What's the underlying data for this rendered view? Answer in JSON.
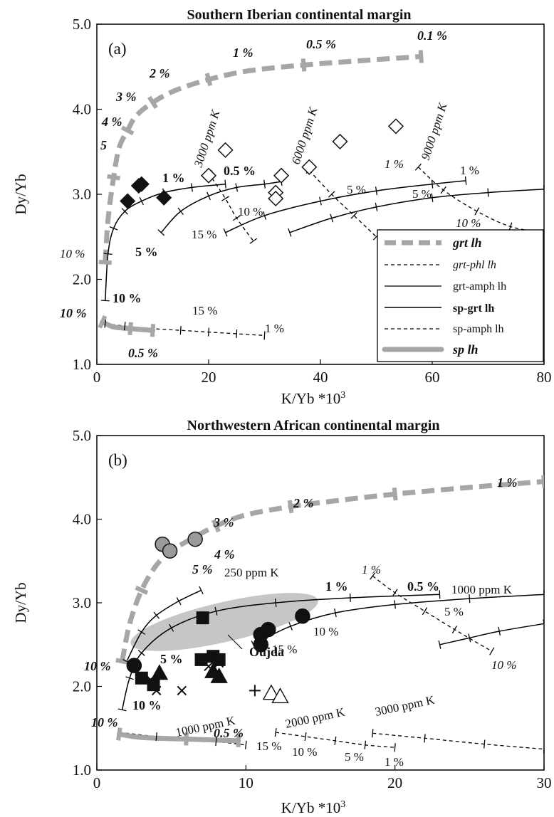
{
  "chart_data": [
    {
      "type": "line",
      "panel_label": "(a)",
      "title": "Southern Iberian continental margin",
      "xlabel": "K/Yb *10",
      "xlabel_sup": "3",
      "ylabel": "Dy/Yb",
      "xlim": [
        0,
        80
      ],
      "ylim": [
        1.0,
        5.0
      ],
      "xticks": [
        0,
        20,
        40,
        60,
        80
      ],
      "yticks": [
        "1.0",
        "2.0",
        "3.0",
        "4.0",
        "5.0"
      ],
      "legend": {
        "position": "bottom-right",
        "entries": [
          {
            "label": "grt lh",
            "style": "grey-thick-dashed",
            "font": "bold-italic"
          },
          {
            "label": "grt-phl lh",
            "style": "black-dashed",
            "font": "italic"
          },
          {
            "label": "grt-amph lh",
            "style": "black-solid",
            "font": "normal"
          },
          {
            "label": "sp-grt lh",
            "style": "black-solid",
            "font": "bold"
          },
          {
            "label": "sp-amph lh",
            "style": "black-dashed",
            "font": "normal"
          },
          {
            "label": "sp lh",
            "style": "grey-thick-solid",
            "font": "bold-italic"
          }
        ]
      },
      "series": [
        {
          "name": "grt lh",
          "style": "grey-thick-dashed",
          "x": [
            1.5,
            2,
            3,
            4,
            5.5,
            7,
            10,
            14,
            20,
            27,
            37,
            47,
            58
          ],
          "y": [
            2.2,
            2.7,
            3.2,
            3.55,
            3.75,
            3.92,
            4.08,
            4.22,
            4.35,
            4.45,
            4.52,
            4.57,
            4.62
          ]
        },
        {
          "name": "sp-grt lh",
          "style": "black-solid",
          "x": [
            1.5,
            2,
            3,
            5,
            8,
            12,
            17,
            23
          ],
          "y": [
            1.75,
            2.3,
            2.6,
            2.8,
            2.92,
            3.02,
            3.08,
            3.12
          ]
        },
        {
          "name": "grt-amph lh 3000 ppm K",
          "style": "black-solid",
          "x": [
            11.5,
            15,
            20,
            25,
            30,
            33
          ],
          "y": [
            2.55,
            2.8,
            2.98,
            3.08,
            3.12,
            3.15
          ]
        },
        {
          "name": "grt-amph lh 6000 ppm K",
          "style": "black-solid",
          "x": [
            23,
            30,
            40,
            50,
            60,
            66
          ],
          "y": [
            2.55,
            2.75,
            2.92,
            3.04,
            3.12,
            3.16
          ]
        },
        {
          "name": "grt-amph lh 9000 ppm K",
          "style": "black-solid",
          "x": [
            34.5,
            42,
            50,
            60,
            70,
            80
          ],
          "y": [
            2.55,
            2.72,
            2.85,
            2.96,
            3.02,
            3.06
          ]
        },
        {
          "name": "grt-phl lh a",
          "style": "black-dashed",
          "x": [
            20,
            23,
            25,
            28
          ],
          "y": [
            3.25,
            2.95,
            2.72,
            2.45
          ]
        },
        {
          "name": "grt-phl lh b",
          "style": "black-dashed",
          "x": [
            38,
            42,
            46,
            50
          ],
          "y": [
            3.28,
            3.0,
            2.75,
            2.5
          ]
        },
        {
          "name": "grt-phl lh c",
          "style": "black-dashed",
          "x": [
            57.5,
            62,
            68,
            74,
            80
          ],
          "y": [
            3.32,
            3.05,
            2.8,
            2.62,
            2.55
          ]
        },
        {
          "name": "sp-amph lh",
          "style": "black-dashed",
          "x": [
            1.5,
            5,
            10,
            15,
            20,
            25,
            30
          ],
          "y": [
            1.48,
            1.45,
            1.42,
            1.4,
            1.38,
            1.36,
            1.34
          ]
        },
        {
          "name": "sp lh",
          "style": "grey-thick-solid",
          "x": [
            1,
            3,
            6,
            10
          ],
          "y": [
            1.5,
            1.44,
            1.42,
            1.4
          ]
        }
      ],
      "points": [
        {
          "marker": "diamond-filled",
          "x": [
            5.5,
            7.5,
            8,
            12
          ],
          "y": [
            2.92,
            3.1,
            3.12,
            2.96
          ]
        },
        {
          "marker": "diamond-open",
          "x": [
            20,
            23,
            32,
            32,
            33,
            38,
            43.5,
            53.5
          ],
          "y": [
            3.22,
            3.52,
            3.02,
            2.95,
            3.22,
            3.32,
            3.62,
            3.8
          ]
        }
      ],
      "annotations": [
        "0.1 %",
        "0.5 %",
        "1 %",
        "2 %",
        "3 %",
        "4 %",
        "5",
        "1 %",
        "0.5 %",
        "5 %",
        "10 %",
        "10 %",
        "10 %",
        "0.5 %",
        "3000 ppm K",
        "6000 ppm K",
        "9000 ppm K",
        "1 %",
        "1 %",
        "5 %",
        "5 %",
        "10 %",
        "10 %",
        "15 %",
        "15 %",
        "1 %"
      ]
    },
    {
      "type": "line",
      "panel_label": "(b)",
      "title": "Northwestern African continental margin",
      "xlabel": "K/Yb *10",
      "xlabel_sup": "3",
      "ylabel": "Dy/Yb",
      "xlim": [
        0,
        30
      ],
      "ylim": [
        1.0,
        5.0
      ],
      "xticks": [
        0,
        10,
        20,
        30
      ],
      "yticks": [
        "1.0",
        "2.0",
        "3.0",
        "4.0",
        "5.0"
      ],
      "field_label": "Oujda",
      "series": [
        {
          "name": "grt lh",
          "style": "grey-thick-dashed",
          "x": [
            1.7,
            2.2,
            3,
            4,
            5,
            6.2,
            8,
            10,
            13,
            16,
            20,
            25,
            30
          ],
          "y": [
            2.3,
            2.75,
            3.15,
            3.45,
            3.62,
            3.75,
            3.92,
            4.05,
            4.15,
            4.22,
            4.3,
            4.38,
            4.45
          ]
        },
        {
          "name": "sp-grt lh",
          "style": "black-solid",
          "x": [
            1.7,
            2.2,
            3,
            5,
            8,
            12,
            17,
            23
          ],
          "y": [
            1.72,
            2.1,
            2.4,
            2.7,
            2.9,
            3.0,
            3.06,
            3.1
          ]
        },
        {
          "name": "250 ppm K",
          "style": "black-solid",
          "x": [
            2,
            3,
            4,
            5.5,
            7
          ],
          "y": [
            2.3,
            2.65,
            2.85,
            3.02,
            3.15
          ]
        },
        {
          "name": "1000 ppm K",
          "style": "black-solid",
          "x": [
            10.5,
            13,
            16,
            20,
            25,
            30
          ],
          "y": [
            2.5,
            2.72,
            2.88,
            2.98,
            3.05,
            3.1
          ]
        },
        {
          "name": "1000 ppm K lower",
          "style": "black-solid",
          "x": [
            23,
            25,
            27,
            30
          ],
          "y": [
            2.5,
            2.58,
            2.66,
            2.75
          ]
        },
        {
          "name": "grt-phl lh",
          "style": "black-dashed",
          "x": [
            18.5,
            20,
            22,
            24,
            26.5
          ],
          "y": [
            3.32,
            3.12,
            2.9,
            2.68,
            2.42
          ]
        },
        {
          "name": "sp-amph lh 1000 ppm K",
          "style": "black-dashed",
          "x": [
            1.5,
            4,
            6,
            8,
            10
          ],
          "y": [
            1.45,
            1.4,
            1.37,
            1.34,
            1.3
          ]
        },
        {
          "name": "sp-amph lh 2000 ppm K",
          "style": "black-dashed",
          "x": [
            12,
            14,
            16,
            18,
            20
          ],
          "y": [
            1.45,
            1.4,
            1.35,
            1.3,
            1.27
          ]
        },
        {
          "name": "sp-amph lh 3000 ppm K",
          "style": "black-dashed",
          "x": [
            18.5,
            22,
            26,
            30
          ],
          "y": [
            1.44,
            1.38,
            1.31,
            1.25
          ]
        },
        {
          "name": "sp lh",
          "style": "grey-thick-solid",
          "x": [
            1.5,
            3,
            6,
            9.5
          ],
          "y": [
            1.43,
            1.39,
            1.37,
            1.35
          ]
        }
      ],
      "points": [
        {
          "marker": "circle-grey",
          "x": [
            4.4,
            4.9,
            6.6
          ],
          "y": [
            3.7,
            3.62,
            3.76
          ]
        },
        {
          "marker": "circle-black",
          "x": [
            2.5,
            11,
            11,
            11.5,
            13.8
          ],
          "y": [
            2.25,
            2.5,
            2.62,
            2.68,
            2.84
          ]
        },
        {
          "marker": "square-black",
          "x": [
            3,
            3.8,
            7,
            7.1,
            7.8,
            8.2
          ],
          "y": [
            2.1,
            2.02,
            2.32,
            2.82,
            2.36,
            2.32
          ]
        },
        {
          "marker": "triangle-black",
          "x": [
            4.2,
            7.8,
            8.2
          ],
          "y": [
            2.16,
            2.18,
            2.12
          ]
        },
        {
          "marker": "triangle-open",
          "x": [
            11.7,
            12.3
          ],
          "y": [
            1.92,
            1.88
          ]
        },
        {
          "marker": "cross",
          "x": [
            3.6,
            4,
            5.7,
            7.5,
            8.2
          ],
          "y": [
            2.08,
            1.95,
            1.95,
            2.24,
            2.28
          ]
        },
        {
          "marker": "plus",
          "x": [
            10.6
          ],
          "y": [
            1.95
          ]
        }
      ],
      "annotations": [
        "1 %",
        "2 %",
        "3 %",
        "4 %",
        "5 %",
        "250 ppm K",
        "1 %",
        "0.5 %",
        "1000 ppm K",
        "1 %",
        "5 %",
        "10 %",
        "10 %",
        "15 %",
        "5 %",
        "10 %",
        "10 %",
        "1000 ppm K",
        "2000 ppm K",
        "3000 ppm K",
        "10 %",
        "0.5 %",
        "15 %",
        "10 %",
        "5 %",
        "1 %"
      ]
    }
  ]
}
